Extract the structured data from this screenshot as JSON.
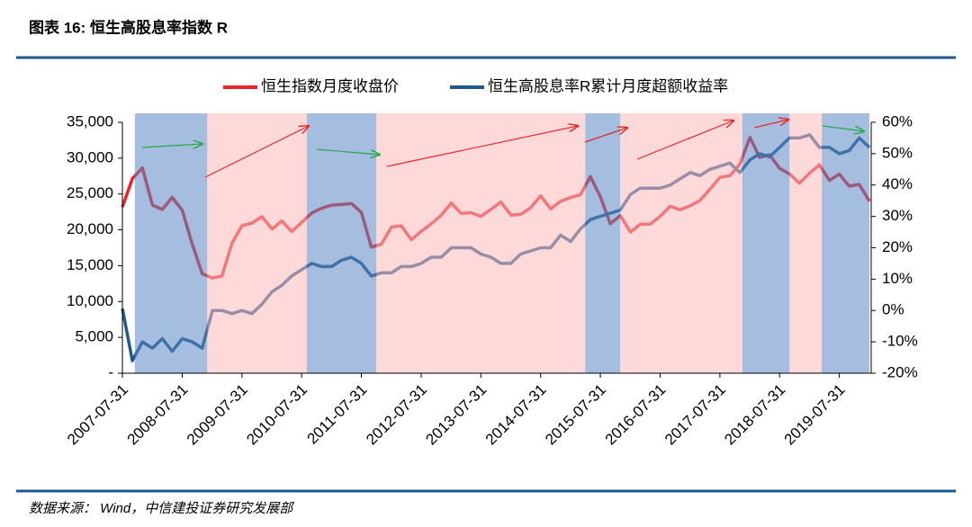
{
  "chart_data": {
    "type": "line",
    "title": "图表 16: 恒生高股息率指数 R",
    "source": "数据来源： Wind，中信建投证券研究发展部",
    "x": [
      "2007-07-31",
      "2007-09-30",
      "2007-11-30",
      "2008-01-31",
      "2008-03-31",
      "2008-05-31",
      "2008-07-31",
      "2008-09-30",
      "2008-11-30",
      "2009-01-31",
      "2009-03-31",
      "2009-05-31",
      "2009-07-31",
      "2009-09-30",
      "2009-11-30",
      "2010-01-31",
      "2010-03-31",
      "2010-05-31",
      "2010-07-31",
      "2010-09-30",
      "2010-11-30",
      "2011-01-31",
      "2011-03-31",
      "2011-05-31",
      "2011-07-31",
      "2011-09-30",
      "2011-11-30",
      "2012-01-31",
      "2012-03-31",
      "2012-05-31",
      "2012-07-31",
      "2012-09-30",
      "2012-11-30",
      "2013-01-31",
      "2013-03-31",
      "2013-05-31",
      "2013-07-31",
      "2013-09-30",
      "2013-11-30",
      "2014-01-31",
      "2014-03-31",
      "2014-05-31",
      "2014-07-31",
      "2014-09-30",
      "2014-11-30",
      "2015-01-31",
      "2015-03-31",
      "2015-05-31",
      "2015-07-31",
      "2015-09-30",
      "2015-11-30",
      "2016-01-31",
      "2016-03-31",
      "2016-05-31",
      "2016-07-31",
      "2016-09-30",
      "2016-11-30",
      "2017-01-31",
      "2017-03-31",
      "2017-05-31",
      "2017-07-31",
      "2017-09-30",
      "2017-11-30",
      "2018-01-31",
      "2018-03-31",
      "2018-05-31",
      "2018-07-31",
      "2018-09-30",
      "2018-11-30",
      "2019-01-31",
      "2019-03-31",
      "2019-05-31",
      "2019-07-31",
      "2019-09-30",
      "2019-11-30",
      "2020-01-31"
    ],
    "series": [
      {
        "name": "恒生指数月度收盘价",
        "color": "#e8262a",
        "values": [
          23185,
          27142,
          28643,
          23456,
          22849,
          24533,
          22731,
          18016,
          13888,
          13278,
          13576,
          18171,
          20573,
          20955,
          21822,
          20122,
          21239,
          19765,
          21030,
          22358,
          23007,
          23447,
          23528,
          23684,
          22440,
          17592,
          17989,
          20390,
          20556,
          18630,
          19796,
          20840,
          22030,
          23730,
          22299,
          22392,
          21883,
          22859,
          23881,
          22035,
          22151,
          23082,
          24757,
          22933,
          23987,
          24507,
          24901,
          27424,
          24636,
          20846,
          21996,
          19683,
          20777,
          20815,
          21891,
          23297,
          22790,
          23361,
          24112,
          25661,
          27323,
          27554,
          29177,
          32887,
          30093,
          30469,
          28583,
          27789,
          26507,
          27942,
          29051,
          26901,
          27778,
          26092,
          26346,
          24000
        ]
      },
      {
        "name": "恒生高股息率R累计月度超额收益率",
        "color": "#1f5a8c",
        "axis": "y2",
        "values": [
          0.6,
          -16,
          -10,
          -12,
          -9,
          -13,
          -9,
          -10,
          -12,
          0,
          0,
          -1,
          0,
          -1,
          2,
          6,
          8,
          11,
          13,
          15,
          14,
          14,
          16,
          17,
          15,
          11,
          12,
          12,
          14,
          14,
          15,
          17,
          17,
          20,
          20,
          20,
          18,
          17,
          15,
          15,
          18,
          19,
          20,
          20,
          24,
          22,
          26,
          29,
          30,
          31,
          32,
          37,
          39,
          39,
          39,
          40,
          42,
          44,
          43,
          45,
          46,
          47,
          44,
          48,
          50,
          49,
          52,
          55,
          55,
          56,
          52,
          52,
          50,
          51,
          55,
          52
        ]
      }
    ],
    "bands": [
      {
        "start": "2007-10-15",
        "end": "2008-12-31",
        "color": "#5b86c2"
      },
      {
        "start": "2008-12-31",
        "end": "2010-08-31",
        "color": "#fbb9bb"
      },
      {
        "start": "2010-08-31",
        "end": "2011-10-31",
        "color": "#5b86c2"
      },
      {
        "start": "2011-10-31",
        "end": "2015-04-30",
        "color": "#fbb9bb"
      },
      {
        "start": "2015-04-30",
        "end": "2015-11-30",
        "color": "#5b86c2"
      },
      {
        "start": "2015-11-30",
        "end": "2017-12-15",
        "color": "#fbb9bb"
      },
      {
        "start": "2017-12-15",
        "end": "2018-09-30",
        "color": "#5b86c2"
      },
      {
        "start": "2018-09-30",
        "end": "2019-04-15",
        "color": "#fbb9bb"
      },
      {
        "start": "2019-04-15",
        "end": "2020-01-31",
        "color": "#5b86c2"
      }
    ],
    "xlim": [
      "2007-07-31",
      "2020-01-31"
    ],
    "xticks": [
      "2007-07-31",
      "2008-07-31",
      "2009-07-31",
      "2010-07-31",
      "2011-07-31",
      "2012-07-31",
      "2013-07-31",
      "2014-07-31",
      "2015-07-31",
      "2016-07-31",
      "2017-07-31",
      "2018-07-31",
      "2019-07-31"
    ],
    "ylim": [
      0,
      35000
    ],
    "yticks": [
      {
        "value": 0,
        "label": "-"
      },
      {
        "value": 5000,
        "label": "5,000"
      },
      {
        "value": 10000,
        "label": "10,000"
      },
      {
        "value": 15000,
        "label": "15,000"
      },
      {
        "value": 20000,
        "label": "20,000"
      },
      {
        "value": 25000,
        "label": "25,000"
      },
      {
        "value": 30000,
        "label": "30,000"
      },
      {
        "value": 35000,
        "label": "35,000"
      }
    ],
    "y2lim": [
      -20,
      60
    ],
    "y2ticks": [
      {
        "value": -20,
        "label": "-20%"
      },
      {
        "value": -10,
        "label": "-10%"
      },
      {
        "value": 0,
        "label": "0%"
      },
      {
        "value": 10,
        "label": "10%"
      },
      {
        "value": 20,
        "label": "20%"
      },
      {
        "value": 30,
        "label": "30%"
      },
      {
        "value": 40,
        "label": "40%"
      },
      {
        "value": 50,
        "label": "50%"
      },
      {
        "value": 60,
        "label": "60%"
      }
    ],
    "legend": "top"
  }
}
